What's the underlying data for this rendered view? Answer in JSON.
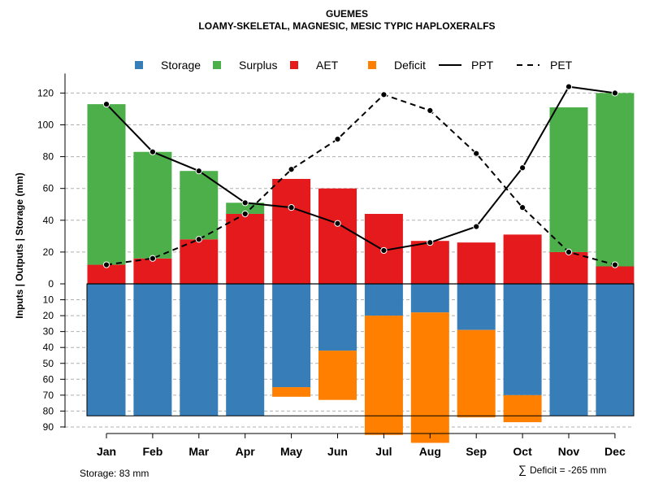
{
  "chart_data": {
    "type": "bar",
    "title": "GUEMES",
    "subtitle": "LOAMY-SKELETAL, MAGNESIC, MESIC TYPIC HAPLOXERALFS",
    "ylabel": "Inputs | Outputs | Storage    (mm)",
    "categories": [
      "Jan",
      "Feb",
      "Mar",
      "Apr",
      "May",
      "Jun",
      "Jul",
      "Aug",
      "Sep",
      "Oct",
      "Nov",
      "Dec"
    ],
    "ylim_upper": [
      0,
      130
    ],
    "ylim_lower": [
      0,
      90
    ],
    "upper_ticks": [
      "0",
      "20",
      "40",
      "60",
      "80",
      "100",
      "120"
    ],
    "lower_ticks": [
      "10",
      "20",
      "30",
      "40",
      "50",
      "60",
      "70",
      "80",
      "90"
    ],
    "storage_capacity": 83,
    "series": [
      {
        "name": "Storage",
        "color": "#377EB8",
        "values": [
          83,
          83,
          83,
          83,
          65,
          42,
          20,
          18,
          29,
          70,
          83,
          83
        ]
      },
      {
        "name": "Surplus",
        "color": "#4DAF4A",
        "values": [
          101,
          67,
          43,
          7,
          0,
          0,
          0,
          0,
          0,
          0,
          91,
          109
        ]
      },
      {
        "name": "AET",
        "color": "#E41A1C",
        "values": [
          12,
          16,
          28,
          44,
          66,
          60,
          44,
          27,
          26,
          31,
          20,
          11
        ]
      },
      {
        "name": "Deficit",
        "color": "#FF7F00",
        "values": [
          0,
          0,
          0,
          0,
          6,
          31,
          75,
          82,
          55,
          17,
          0,
          0
        ]
      },
      {
        "name": "PPT",
        "color": "#000000",
        "style": "solid",
        "values": [
          113,
          83,
          71,
          51,
          48,
          38,
          21,
          26,
          36,
          73,
          124,
          120
        ]
      },
      {
        "name": "PET",
        "color": "#000000",
        "style": "dashed",
        "values": [
          12,
          16,
          28,
          44,
          72,
          91,
          119,
          109,
          82,
          48,
          20,
          12
        ]
      }
    ],
    "grid": true,
    "legend": "top"
  },
  "footer": {
    "storage_label": "Storage: 83 mm",
    "deficit_symbol": "∑",
    "deficit_label": "Deficit = -265 mm"
  }
}
